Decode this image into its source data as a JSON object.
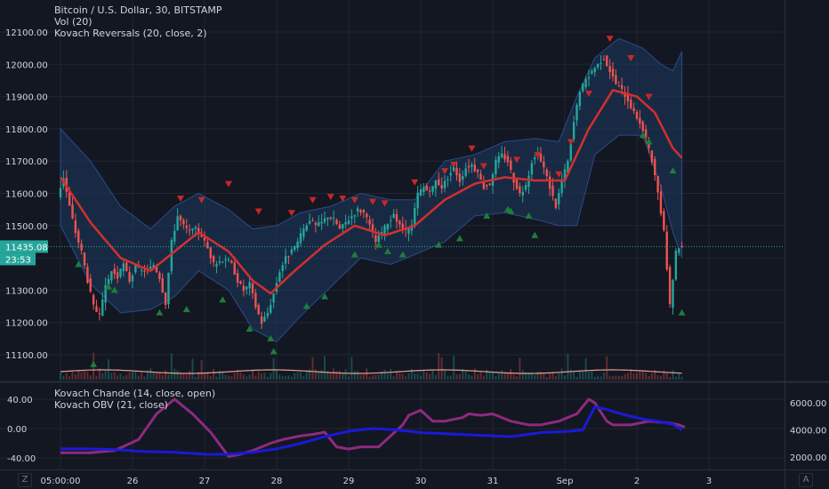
{
  "legend": {
    "main_title": "Bitcoin / U.S. Dollar, 30, BITSTAMP",
    "vol": "Vol (20)",
    "kovach_reversals": "Kovach Reversals (20, close, 2)",
    "chande": "Kovach Chande (14, close, open)",
    "obv": "Kovach OBV (21, close)"
  },
  "price_axis": {
    "ticks": [
      "12100.00",
      "12000.00",
      "11900.00",
      "11800.00",
      "11700.00",
      "11600.00",
      "11500.00",
      "11300.00",
      "11200.00",
      "11100.00"
    ],
    "tick_values": [
      12100,
      12000,
      11900,
      11800,
      11700,
      11600,
      11500,
      11300,
      11200,
      11100
    ],
    "current_price": "11435.08",
    "countdown": "23:53",
    "current_price_value": 11435.08
  },
  "osc_left_axis": {
    "ticks": [
      "40.00",
      "0.00",
      "-40.00"
    ],
    "tick_values": [
      40,
      0,
      -40
    ]
  },
  "osc_right_axis": {
    "ticks": [
      "6000.00",
      "4000.00",
      "2000.00"
    ],
    "tick_values": [
      6000,
      4000,
      2000
    ]
  },
  "time_axis": {
    "labels": [
      "05:00:00",
      "26",
      "27",
      "28",
      "29",
      "30",
      "31",
      "Sep",
      "2",
      "3"
    ]
  },
  "buttons": {
    "timezone": "Z",
    "auto": "A"
  },
  "colors": {
    "background": "#131722",
    "grid": "#232632",
    "up": "#26a69a",
    "down": "#ef5350",
    "ma": "#d32f2f",
    "band": "#1e3a5f",
    "buy_marker": "#1b7f3a",
    "sell_marker": "#c62828",
    "chande": "#8e2a7e",
    "obv": "#1a1ad6",
    "volume_line": "#e8a090"
  },
  "chart_data": {
    "type": "candlestick",
    "symbol": "Bitcoin / U.S. Dollar",
    "interval": "30",
    "exchange": "BITSTAMP",
    "ylim": [
      11060,
      12140
    ],
    "x_labels": [
      "05:00:00",
      "26",
      "27",
      "28",
      "29",
      "30",
      "31",
      "Sep",
      "2",
      "3"
    ],
    "close_path": [
      [
        0,
        11590
      ],
      [
        2,
        11650
      ],
      [
        4,
        11560
      ],
      [
        6,
        11480
      ],
      [
        8,
        11420
      ],
      [
        10,
        11330
      ],
      [
        12,
        11250
      ],
      [
        14,
        11220
      ],
      [
        16,
        11310
      ],
      [
        18,
        11360
      ],
      [
        20,
        11340
      ],
      [
        22,
        11380
      ],
      [
        24,
        11330
      ],
      [
        26,
        11370
      ],
      [
        28,
        11360
      ],
      [
        30,
        11360
      ],
      [
        32,
        11380
      ],
      [
        34,
        11340
      ],
      [
        36,
        11260
      ],
      [
        38,
        11450
      ],
      [
        40,
        11530
      ],
      [
        42,
        11500
      ],
      [
        44,
        11480
      ],
      [
        46,
        11490
      ],
      [
        48,
        11470
      ],
      [
        50,
        11430
      ],
      [
        52,
        11380
      ],
      [
        54,
        11390
      ],
      [
        56,
        11400
      ],
      [
        58,
        11380
      ],
      [
        60,
        11330
      ],
      [
        62,
        11300
      ],
      [
        64,
        11320
      ],
      [
        66,
        11250
      ],
      [
        68,
        11200
      ],
      [
        70,
        11230
      ],
      [
        72,
        11290
      ],
      [
        74,
        11360
      ],
      [
        76,
        11400
      ],
      [
        78,
        11420
      ],
      [
        80,
        11450
      ],
      [
        82,
        11490
      ],
      [
        84,
        11520
      ],
      [
        86,
        11500
      ],
      [
        88,
        11510
      ],
      [
        90,
        11530
      ],
      [
        92,
        11520
      ],
      [
        94,
        11490
      ],
      [
        96,
        11510
      ],
      [
        98,
        11530
      ],
      [
        100,
        11550
      ],
      [
        102,
        11540
      ],
      [
        104,
        11500
      ],
      [
        106,
        11450
      ],
      [
        108,
        11480
      ],
      [
        110,
        11510
      ],
      [
        112,
        11530
      ],
      [
        114,
        11500
      ],
      [
        116,
        11480
      ],
      [
        118,
        11500
      ],
      [
        120,
        11600
      ],
      [
        122,
        11620
      ],
      [
        124,
        11600
      ],
      [
        126,
        11640
      ],
      [
        128,
        11620
      ],
      [
        130,
        11650
      ],
      [
        132,
        11680
      ],
      [
        134,
        11640
      ],
      [
        136,
        11680
      ],
      [
        138,
        11690
      ],
      [
        140,
        11660
      ],
      [
        142,
        11620
      ],
      [
        144,
        11630
      ],
      [
        146,
        11700
      ],
      [
        148,
        11720
      ],
      [
        150,
        11700
      ],
      [
        152,
        11640
      ],
      [
        154,
        11600
      ],
      [
        156,
        11620
      ],
      [
        158,
        11700
      ],
      [
        160,
        11720
      ],
      [
        162,
        11680
      ],
      [
        164,
        11620
      ],
      [
        166,
        11560
      ],
      [
        168,
        11640
      ],
      [
        170,
        11700
      ],
      [
        172,
        11820
      ],
      [
        174,
        11920
      ],
      [
        176,
        11950
      ],
      [
        178,
        11980
      ],
      [
        180,
        12000
      ],
      [
        182,
        12020
      ],
      [
        184,
        11980
      ],
      [
        186,
        11940
      ],
      [
        188,
        11920
      ],
      [
        190,
        11890
      ],
      [
        192,
        11850
      ],
      [
        194,
        11820
      ],
      [
        196,
        11770
      ],
      [
        198,
        11700
      ],
      [
        200,
        11600
      ],
      [
        202,
        11480
      ],
      [
        204,
        11250
      ],
      [
        206,
        11420
      ],
      [
        207,
        11435
      ]
    ],
    "ma_path": [
      [
        0,
        11650
      ],
      [
        10,
        11510
      ],
      [
        20,
        11400
      ],
      [
        30,
        11360
      ],
      [
        38,
        11420
      ],
      [
        46,
        11480
      ],
      [
        56,
        11420
      ],
      [
        64,
        11330
      ],
      [
        70,
        11290
      ],
      [
        78,
        11360
      ],
      [
        88,
        11440
      ],
      [
        98,
        11500
      ],
      [
        108,
        11470
      ],
      [
        118,
        11500
      ],
      [
        128,
        11580
      ],
      [
        138,
        11630
      ],
      [
        148,
        11650
      ],
      [
        158,
        11640
      ],
      [
        168,
        11640
      ],
      [
        176,
        11800
      ],
      [
        184,
        11920
      ],
      [
        192,
        11900
      ],
      [
        198,
        11850
      ],
      [
        204,
        11740
      ],
      [
        207,
        11710
      ]
    ],
    "band_upper": [
      [
        0,
        11800
      ],
      [
        10,
        11700
      ],
      [
        20,
        11560
      ],
      [
        30,
        11490
      ],
      [
        38,
        11560
      ],
      [
        46,
        11600
      ],
      [
        56,
        11550
      ],
      [
        64,
        11490
      ],
      [
        72,
        11500
      ],
      [
        80,
        11540
      ],
      [
        90,
        11560
      ],
      [
        100,
        11600
      ],
      [
        110,
        11580
      ],
      [
        118,
        11580
      ],
      [
        128,
        11700
      ],
      [
        138,
        11720
      ],
      [
        148,
        11760
      ],
      [
        158,
        11770
      ],
      [
        166,
        11760
      ],
      [
        172,
        11900
      ],
      [
        178,
        12020
      ],
      [
        186,
        12080
      ],
      [
        194,
        12050
      ],
      [
        200,
        12000
      ],
      [
        204,
        11980
      ],
      [
        207,
        12040
      ]
    ],
    "band_lower": [
      [
        0,
        11500
      ],
      [
        10,
        11320
      ],
      [
        20,
        11230
      ],
      [
        30,
        11240
      ],
      [
        38,
        11280
      ],
      [
        46,
        11360
      ],
      [
        56,
        11300
      ],
      [
        64,
        11180
      ],
      [
        72,
        11140
      ],
      [
        80,
        11220
      ],
      [
        90,
        11310
      ],
      [
        100,
        11400
      ],
      [
        110,
        11380
      ],
      [
        118,
        11410
      ],
      [
        128,
        11450
      ],
      [
        138,
        11530
      ],
      [
        148,
        11540
      ],
      [
        158,
        11520
      ],
      [
        166,
        11500
      ],
      [
        172,
        11500
      ],
      [
        178,
        11720
      ],
      [
        186,
        11780
      ],
      [
        194,
        11780
      ],
      [
        200,
        11620
      ],
      [
        204,
        11480
      ],
      [
        207,
        11400
      ]
    ],
    "sell_markers": [
      [
        40,
        11585
      ],
      [
        47,
        11580
      ],
      [
        56,
        11630
      ],
      [
        66,
        11545
      ],
      [
        77,
        11540
      ],
      [
        84,
        11580
      ],
      [
        90,
        11590
      ],
      [
        94,
        11585
      ],
      [
        98,
        11580
      ],
      [
        104,
        11575
      ],
      [
        108,
        11570
      ],
      [
        118,
        11635
      ],
      [
        128,
        11670
      ],
      [
        131,
        11690
      ],
      [
        137,
        11740
      ],
      [
        141,
        11685
      ],
      [
        152,
        11705
      ],
      [
        159,
        11720
      ],
      [
        166,
        11660
      ],
      [
        170,
        11760
      ],
      [
        176,
        11910
      ],
      [
        183,
        12080
      ],
      [
        190,
        12020
      ],
      [
        196,
        11900
      ]
    ],
    "buy_markers": [
      [
        6,
        11380
      ],
      [
        16,
        11310
      ],
      [
        18,
        11300
      ],
      [
        33,
        11230
      ],
      [
        42,
        11240
      ],
      [
        54,
        11270
      ],
      [
        63,
        11180
      ],
      [
        70,
        11150
      ],
      [
        71,
        11110
      ],
      [
        82,
        11250
      ],
      [
        88,
        11280
      ],
      [
        98,
        11410
      ],
      [
        106,
        11440
      ],
      [
        109,
        11420
      ],
      [
        114,
        11410
      ],
      [
        126,
        11440
      ],
      [
        133,
        11460
      ],
      [
        142,
        11530
      ],
      [
        149,
        11550
      ],
      [
        150,
        11545
      ],
      [
        156,
        11530
      ],
      [
        158,
        11470
      ],
      [
        194,
        11780
      ],
      [
        196,
        11760
      ],
      [
        204,
        11670
      ],
      [
        207,
        11230
      ],
      [
        11,
        11070
      ]
    ],
    "chande_path": [
      [
        0,
        -33
      ],
      [
        10,
        -33
      ],
      [
        18,
        -30
      ],
      [
        26,
        -15
      ],
      [
        32,
        20
      ],
      [
        38,
        40
      ],
      [
        44,
        20
      ],
      [
        50,
        -5
      ],
      [
        56,
        -38
      ],
      [
        60,
        -35
      ],
      [
        64,
        -30
      ],
      [
        70,
        -20
      ],
      [
        74,
        -15
      ],
      [
        80,
        -10
      ],
      [
        84,
        -8
      ],
      [
        88,
        -5
      ],
      [
        92,
        -25
      ],
      [
        96,
        -28
      ],
      [
        100,
        -25
      ],
      [
        106,
        -25
      ],
      [
        110,
        -10
      ],
      [
        114,
        5
      ],
      [
        116,
        18
      ],
      [
        120,
        25
      ],
      [
        124,
        10
      ],
      [
        128,
        10
      ],
      [
        134,
        15
      ],
      [
        136,
        20
      ],
      [
        140,
        18
      ],
      [
        144,
        20
      ],
      [
        150,
        10
      ],
      [
        156,
        5
      ],
      [
        160,
        5
      ],
      [
        166,
        10
      ],
      [
        172,
        20
      ],
      [
        176,
        40
      ],
      [
        178,
        35
      ],
      [
        182,
        10
      ],
      [
        184,
        5
      ],
      [
        190,
        5
      ],
      [
        196,
        10
      ],
      [
        202,
        8
      ],
      [
        206,
        5
      ],
      [
        208,
        2
      ]
    ],
    "obv_path": [
      [
        0,
        2600
      ],
      [
        8,
        2600
      ],
      [
        18,
        2550
      ],
      [
        28,
        2400
      ],
      [
        38,
        2350
      ],
      [
        48,
        2200
      ],
      [
        56,
        2200
      ],
      [
        64,
        2350
      ],
      [
        72,
        2600
      ],
      [
        80,
        3000
      ],
      [
        88,
        3500
      ],
      [
        96,
        3900
      ],
      [
        104,
        4100
      ],
      [
        112,
        4000
      ],
      [
        120,
        3800
      ],
      [
        130,
        3700
      ],
      [
        140,
        3600
      ],
      [
        150,
        3500
      ],
      [
        160,
        3800
      ],
      [
        170,
        3900
      ],
      [
        174,
        4000
      ],
      [
        178,
        5700
      ],
      [
        182,
        5500
      ],
      [
        188,
        5100
      ],
      [
        194,
        4800
      ],
      [
        200,
        4600
      ],
      [
        204,
        4400
      ],
      [
        207,
        4000
      ]
    ],
    "chande_ylim": [
      -55,
      55
    ],
    "obv_ylim": [
      1200,
      6800
    ]
  }
}
